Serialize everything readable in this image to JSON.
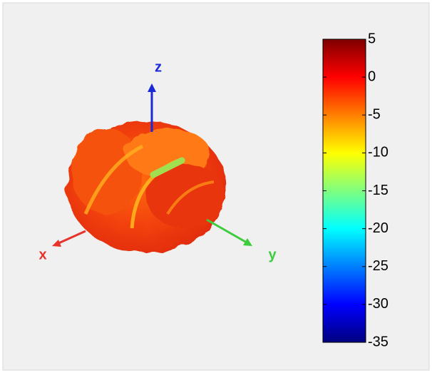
{
  "chart_data": {
    "type": "surface3d",
    "axis_labels": {
      "x": "x",
      "y": "y",
      "z": "z"
    },
    "axis_colors": {
      "x": "#e8322c",
      "y": "#3ccc3c",
      "z": "#1a2ad6"
    },
    "colorbar": {
      "colormap": "jet",
      "lim": [
        -35,
        5
      ],
      "ticks": [
        5,
        0,
        -5,
        -10,
        -15,
        -20,
        -25,
        -30,
        -35
      ]
    }
  }
}
